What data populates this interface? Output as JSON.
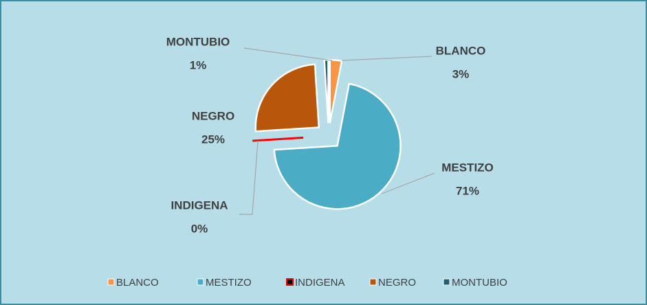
{
  "chart_data": {
    "type": "pie",
    "categories": [
      "BLANCO",
      "MESTIZO",
      "INDIGENA",
      "NEGRO",
      "MONTUBIO"
    ],
    "values": [
      3,
      71,
      0,
      25,
      1
    ],
    "value_labels": [
      "3%",
      "71%",
      "0%",
      "25%",
      "1%"
    ],
    "colors": [
      "#f79646",
      "#4bacc6",
      "#ff0000",
      "#b8560b",
      "#215f72"
    ],
    "legend": "bottom"
  }
}
